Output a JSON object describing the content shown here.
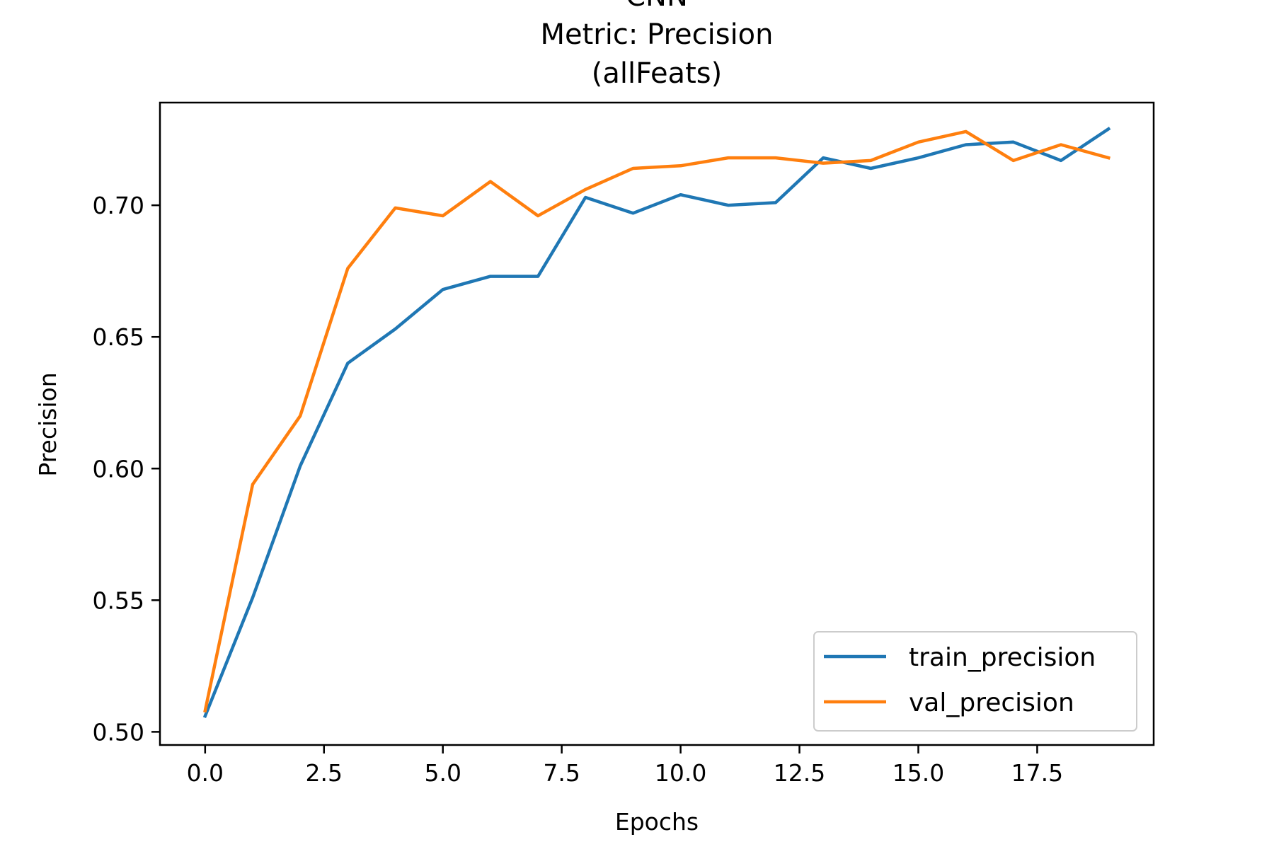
{
  "chart_data": {
    "type": "line",
    "title_lines": [
      "CNN",
      "Metric: Precision",
      "(allFeats)"
    ],
    "xlabel": "Epochs",
    "ylabel": "Precision",
    "xlim": [
      -0.95,
      19.95
    ],
    "ylim": [
      0.495,
      0.739
    ],
    "x_ticks": [
      0.0,
      2.5,
      5.0,
      7.5,
      10.0,
      12.5,
      15.0,
      17.5
    ],
    "x_tick_labels": [
      "0.0",
      "2.5",
      "5.0",
      "7.5",
      "10.0",
      "12.5",
      "15.0",
      "17.5"
    ],
    "y_ticks": [
      0.5,
      0.55,
      0.6,
      0.65,
      0.7
    ],
    "y_tick_labels": [
      "0.50",
      "0.55",
      "0.60",
      "0.65",
      "0.70"
    ],
    "grid": false,
    "legend_position": "lower-right",
    "x": [
      0,
      1,
      2,
      3,
      4,
      5,
      6,
      7,
      8,
      9,
      10,
      11,
      12,
      13,
      14,
      15,
      16,
      17,
      18,
      19
    ],
    "series": [
      {
        "name": "train_precision",
        "color": "#1f77b4",
        "values": [
          0.506,
          0.551,
          0.601,
          0.64,
          0.653,
          0.668,
          0.673,
          0.673,
          0.703,
          0.697,
          0.704,
          0.7,
          0.701,
          0.718,
          0.714,
          0.718,
          0.723,
          0.724,
          0.717,
          0.729
        ]
      },
      {
        "name": "val_precision",
        "color": "#ff7f0e",
        "values": [
          0.508,
          0.594,
          0.62,
          0.676,
          0.699,
          0.696,
          0.709,
          0.696,
          0.706,
          0.714,
          0.715,
          0.718,
          0.718,
          0.716,
          0.717,
          0.724,
          0.728,
          0.717,
          0.723,
          0.718
        ]
      }
    ]
  }
}
